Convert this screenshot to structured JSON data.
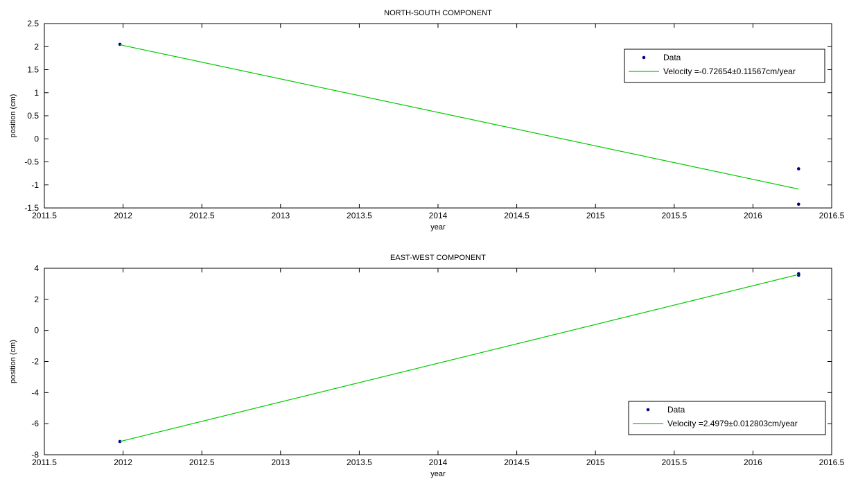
{
  "chart_data": [
    {
      "type": "scatter",
      "title": "NORTH-SOUTH COMPONENT",
      "xlabel": "year",
      "ylabel": "position (cm)",
      "xlim": [
        2011.5,
        2016.5
      ],
      "ylim": [
        -1.5,
        2.5
      ],
      "xticks": [
        "2011.5",
        "2012",
        "2012.5",
        "2013",
        "2013.5",
        "2014",
        "2014.5",
        "2015",
        "2015.5",
        "2016",
        "2016.5"
      ],
      "yticks": [
        "-1.5",
        "-1",
        "-0.5",
        "0",
        "0.5",
        "1",
        "1.5",
        "2",
        "2.5"
      ],
      "grid": false,
      "legend_position": "top-right",
      "series": [
        {
          "name": "Data",
          "kind": "points",
          "color": "#00008b",
          "x": [
            2011.98,
            2016.29,
            2016.29
          ],
          "y": [
            2.05,
            -0.65,
            -1.42
          ]
        },
        {
          "name": "Velocity =-0.72654±0.11567cm/year",
          "kind": "line",
          "color": "#00cc00",
          "x": [
            2011.98,
            2016.29
          ],
          "y": [
            2.04,
            -1.09
          ]
        }
      ]
    },
    {
      "type": "scatter",
      "title": "EAST-WEST COMPONENT",
      "xlabel": "year",
      "ylabel": "position (cm)",
      "xlim": [
        2011.5,
        2016.5
      ],
      "ylim": [
        -8,
        4
      ],
      "xticks": [
        "2011.5",
        "2012",
        "2012.5",
        "2013",
        "2013.5",
        "2014",
        "2014.5",
        "2015",
        "2015.5",
        "2016",
        "2016.5"
      ],
      "yticks": [
        "-8",
        "-6",
        "-4",
        "-2",
        "0",
        "2",
        "4"
      ],
      "grid": false,
      "legend_position": "bottom-right",
      "series": [
        {
          "name": "Data",
          "kind": "points",
          "color": "#00008b",
          "x": [
            2011.98,
            2016.29,
            2016.29
          ],
          "y": [
            -7.15,
            3.55,
            3.65
          ]
        },
        {
          "name": "Velocity =2.4979±0.012803cm/year",
          "kind": "line",
          "color": "#00cc00",
          "x": [
            2011.98,
            2016.29
          ],
          "y": [
            -7.15,
            3.6
          ]
        }
      ]
    }
  ]
}
